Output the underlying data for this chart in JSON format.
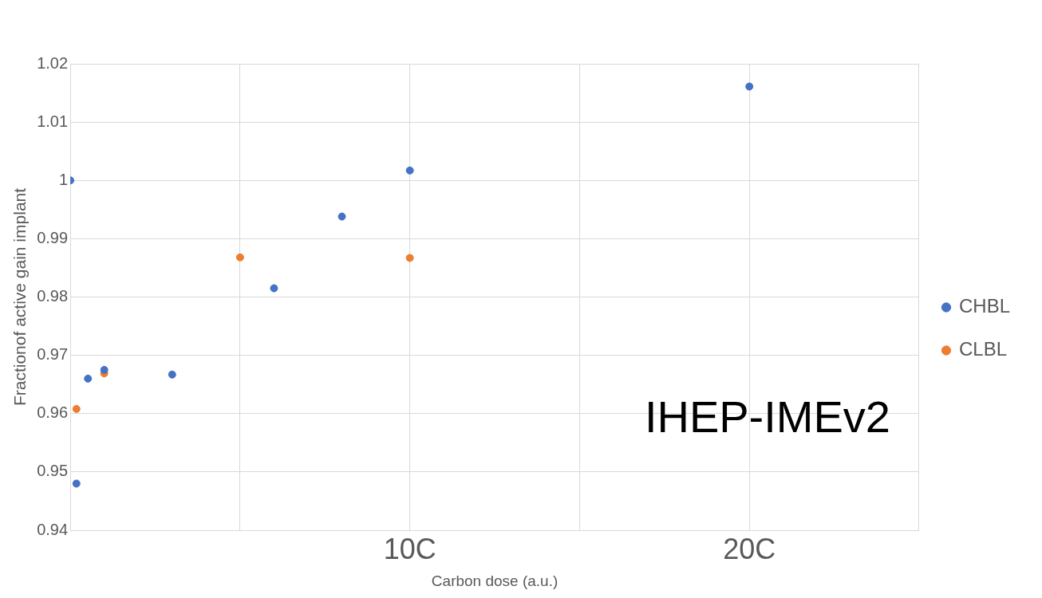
{
  "chart_data": {
    "type": "scatter",
    "xlabel": "Carbon dose (a.u.)",
    "ylabel": "Fractionof active gain implant",
    "xlim": [
      0,
      25
    ],
    "xticks": [
      {
        "value": 0,
        "label": null
      },
      {
        "value": 5,
        "label": null
      },
      {
        "value": 10,
        "label": "10C"
      },
      {
        "value": 15,
        "label": null
      },
      {
        "value": 20,
        "label": "20C"
      },
      {
        "value": 25,
        "label": null
      }
    ],
    "ylim": [
      0.94,
      1.02
    ],
    "yticks": [
      0.94,
      0.95,
      0.96,
      0.97,
      0.98,
      0.99,
      1,
      1.01,
      1.02
    ],
    "series": [
      {
        "name": "CHBL",
        "color": "#4472c4",
        "x": [
          0,
          0.18,
          0.52,
          1.0,
          3.0,
          6.0,
          8.0,
          10,
          20
        ],
        "values": [
          1.0,
          0.948,
          0.966,
          0.9675,
          0.9667,
          0.9815,
          0.9938,
          1.0017,
          1.0161
        ]
      },
      {
        "name": "CLBL",
        "color": "#ed7d31",
        "x": [
          0.18,
          1.0,
          5.0,
          10
        ],
        "values": [
          0.9608,
          0.9669,
          0.9868,
          0.9867
        ]
      }
    ],
    "grid": true,
    "legend": "right",
    "marker": "circle",
    "annotations": [
      "IHEP-IMEv2"
    ]
  }
}
